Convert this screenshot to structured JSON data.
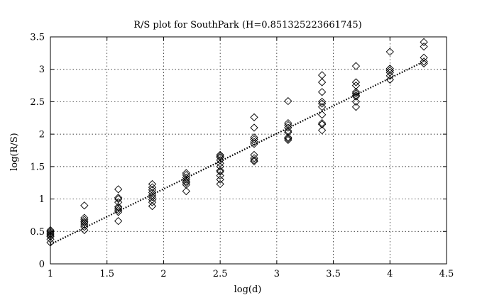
{
  "chart_data": {
    "type": "scatter",
    "title": "R/S plot for SouthPark (H=0.851325223661745)",
    "xlabel": "log(d)",
    "ylabel": "log(R/S)",
    "xlim": [
      1,
      4.5
    ],
    "ylim": [
      0,
      3.5
    ],
    "xticks": [
      1,
      1.5,
      2,
      2.5,
      3,
      3.5,
      4,
      4.5
    ],
    "yticks": [
      0,
      0.5,
      1,
      1.5,
      2,
      2.5,
      3,
      3.5
    ],
    "xtick_labels": [
      "1",
      "1.5",
      "2",
      "2.5",
      "3",
      "3.5",
      "4",
      "4.5"
    ],
    "ytick_labels": [
      "0",
      "0.5",
      "1",
      "1.5",
      "2",
      "2.5",
      "3",
      "3.5"
    ],
    "grid": true,
    "marker": "diamond",
    "series": [
      {
        "x": [
          1,
          1,
          1,
          1,
          1,
          1,
          1,
          1,
          1.3,
          1.3,
          1.3,
          1.3,
          1.3,
          1.3,
          1.3,
          1.3,
          1.6,
          1.6,
          1.6,
          1.6,
          1.6,
          1.6,
          1.6,
          1.6,
          1.6,
          1.9,
          1.9,
          1.9,
          1.9,
          1.9,
          1.9,
          1.9,
          1.9,
          1.9,
          2.2,
          2.2,
          2.2,
          2.2,
          2.2,
          2.2,
          2.2,
          2.2,
          2.5,
          2.5,
          2.5,
          2.5,
          2.5,
          2.5,
          2.5,
          2.5,
          2.5,
          2.5,
          2.5,
          2.8,
          2.8,
          2.8,
          2.8,
          2.8,
          2.8,
          2.8,
          2.8,
          2.8,
          2.8,
          3.1,
          3.1,
          3.1,
          3.1,
          3.1,
          3.1,
          3.1,
          3.1,
          3.1,
          3.4,
          3.4,
          3.4,
          3.4,
          3.4,
          3.4,
          3.4,
          3.4,
          3.4,
          3.4,
          3.7,
          3.7,
          3.7,
          3.7,
          3.7,
          3.7,
          3.7,
          3.7,
          3.7,
          4.0,
          4.0,
          4.0,
          4.0,
          4.0,
          4.0,
          4.3,
          4.3,
          4.3,
          4.3,
          4.3
        ],
        "y": [
          0.52,
          0.5,
          0.48,
          0.46,
          0.44,
          0.42,
          0.38,
          0.33,
          0.9,
          0.71,
          0.68,
          0.65,
          0.63,
          0.6,
          0.57,
          0.52,
          1.15,
          1.02,
          1.0,
          0.95,
          0.88,
          0.86,
          0.83,
          0.8,
          0.66,
          1.23,
          1.18,
          1.14,
          1.1,
          1.06,
          1.03,
          0.99,
          0.95,
          0.89,
          1.4,
          1.37,
          1.33,
          1.3,
          1.27,
          1.25,
          1.22,
          1.12,
          1.68,
          1.66,
          1.64,
          1.6,
          1.55,
          1.5,
          1.44,
          1.42,
          1.36,
          1.3,
          1.23,
          2.26,
          2.1,
          1.95,
          1.92,
          1.88,
          1.85,
          1.68,
          1.63,
          1.6,
          1.58,
          2.51,
          2.17,
          2.14,
          2.1,
          2.05,
          2.03,
          1.95,
          1.93,
          1.91,
          2.91,
          2.8,
          2.65,
          2.5,
          2.47,
          2.42,
          2.3,
          2.17,
          2.15,
          2.06,
          3.05,
          2.8,
          2.75,
          2.65,
          2.63,
          2.6,
          2.58,
          2.5,
          2.42,
          3.27,
          3.01,
          2.98,
          2.95,
          2.9,
          2.84,
          3.42,
          3.35,
          3.18,
          3.12,
          3.09
        ]
      }
    ],
    "fit_line": {
      "x": [
        1,
        4.3
      ],
      "y": [
        0.3,
        3.12
      ]
    }
  }
}
